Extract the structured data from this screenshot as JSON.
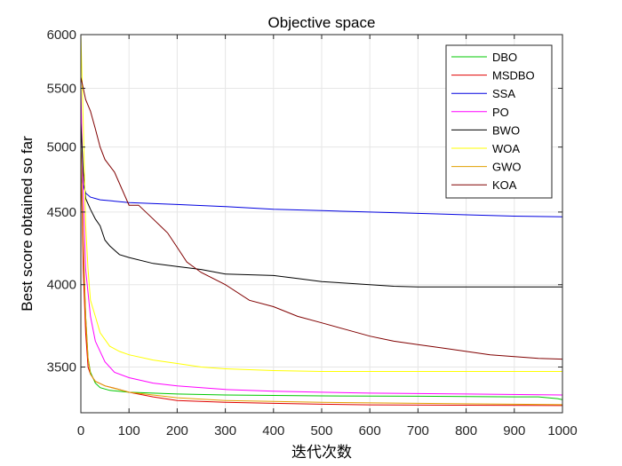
{
  "chart_data": {
    "type": "line",
    "title": "Objective space",
    "xlabel": "迭代次数",
    "ylabel": "Best score obtained so far",
    "xlim": [
      0,
      1000
    ],
    "ylim": [
      3250,
      6000
    ],
    "yscale": "log",
    "grid": true,
    "legend_position": "top-right",
    "x_ticks": [
      0,
      100,
      200,
      300,
      400,
      500,
      600,
      700,
      800,
      900,
      1000
    ],
    "y_ticks": [
      3500,
      4000,
      4500,
      5000,
      5500,
      6000
    ],
    "series": [
      {
        "name": "DBO",
        "color": "#00c800",
        "points": [
          [
            0,
            5000
          ],
          [
            5,
            4200
          ],
          [
            10,
            3800
          ],
          [
            15,
            3550
          ],
          [
            20,
            3470
          ],
          [
            30,
            3410
          ],
          [
            40,
            3385
          ],
          [
            60,
            3370
          ],
          [
            100,
            3360
          ],
          [
            150,
            3355
          ],
          [
            200,
            3350
          ],
          [
            300,
            3345
          ],
          [
            500,
            3340
          ],
          [
            700,
            3338
          ],
          [
            900,
            3335
          ],
          [
            950,
            3335
          ],
          [
            990,
            3325
          ],
          [
            1000,
            3320
          ]
        ]
      },
      {
        "name": "MSDBO",
        "color": "#e00000",
        "points": [
          [
            0,
            5000
          ],
          [
            5,
            4100
          ],
          [
            10,
            3700
          ],
          [
            15,
            3500
          ],
          [
            20,
            3460
          ],
          [
            30,
            3420
          ],
          [
            50,
            3395
          ],
          [
            80,
            3375
          ],
          [
            100,
            3360
          ],
          [
            150,
            3335
          ],
          [
            200,
            3315
          ],
          [
            300,
            3305
          ],
          [
            400,
            3300
          ],
          [
            500,
            3295
          ],
          [
            600,
            3292
          ],
          [
            800,
            3290
          ],
          [
            1000,
            3288
          ]
        ]
      },
      {
        "name": "SSA",
        "color": "#0000e0",
        "points": [
          [
            0,
            4800
          ],
          [
            5,
            4700
          ],
          [
            10,
            4640
          ],
          [
            20,
            4610
          ],
          [
            40,
            4590
          ],
          [
            100,
            4570
          ],
          [
            200,
            4555
          ],
          [
            300,
            4540
          ],
          [
            400,
            4520
          ],
          [
            500,
            4510
          ],
          [
            600,
            4500
          ],
          [
            700,
            4490
          ],
          [
            800,
            4480
          ],
          [
            900,
            4470
          ],
          [
            1000,
            4465
          ]
        ]
      },
      {
        "name": "PO",
        "color": "#ff00ff",
        "points": [
          [
            0,
            5500
          ],
          [
            5,
            4600
          ],
          [
            10,
            4100
          ],
          [
            20,
            3800
          ],
          [
            30,
            3650
          ],
          [
            50,
            3530
          ],
          [
            70,
            3470
          ],
          [
            100,
            3440
          ],
          [
            150,
            3410
          ],
          [
            200,
            3395
          ],
          [
            300,
            3375
          ],
          [
            400,
            3365
          ],
          [
            500,
            3360
          ],
          [
            600,
            3355
          ],
          [
            800,
            3350
          ],
          [
            1000,
            3345
          ]
        ]
      },
      {
        "name": "BWO",
        "color": "#000000",
        "points": [
          [
            0,
            5200
          ],
          [
            5,
            4800
          ],
          [
            10,
            4600
          ],
          [
            20,
            4520
          ],
          [
            30,
            4450
          ],
          [
            40,
            4400
          ],
          [
            50,
            4300
          ],
          [
            60,
            4260
          ],
          [
            80,
            4200
          ],
          [
            100,
            4180
          ],
          [
            150,
            4140
          ],
          [
            200,
            4120
          ],
          [
            250,
            4100
          ],
          [
            300,
            4070
          ],
          [
            400,
            4060
          ],
          [
            450,
            4040
          ],
          [
            500,
            4020
          ],
          [
            550,
            4010
          ],
          [
            600,
            4000
          ],
          [
            650,
            3990
          ],
          [
            700,
            3985
          ],
          [
            800,
            3985
          ],
          [
            900,
            3985
          ],
          [
            1000,
            3985
          ]
        ]
      },
      {
        "name": "WOA",
        "color": "#ffff00",
        "points": [
          [
            0,
            6000
          ],
          [
            5,
            5200
          ],
          [
            10,
            4400
          ],
          [
            15,
            4100
          ],
          [
            20,
            3900
          ],
          [
            30,
            3800
          ],
          [
            40,
            3700
          ],
          [
            60,
            3620
          ],
          [
            80,
            3590
          ],
          [
            100,
            3570
          ],
          [
            150,
            3540
          ],
          [
            200,
            3520
          ],
          [
            250,
            3500
          ],
          [
            300,
            3490
          ],
          [
            400,
            3480
          ],
          [
            500,
            3475
          ],
          [
            700,
            3475
          ],
          [
            1000,
            3475
          ]
        ]
      },
      {
        "name": "GWO",
        "color": "#e0a000",
        "points": [
          [
            0,
            5000
          ],
          [
            5,
            4300
          ],
          [
            10,
            3800
          ],
          [
            15,
            3550
          ],
          [
            20,
            3460
          ],
          [
            30,
            3420
          ],
          [
            50,
            3395
          ],
          [
            100,
            3360
          ],
          [
            200,
            3330
          ],
          [
            300,
            3315
          ],
          [
            400,
            3310
          ],
          [
            500,
            3305
          ],
          [
            700,
            3300
          ],
          [
            900,
            3295
          ],
          [
            1000,
            3293
          ]
        ]
      },
      {
        "name": "KOA",
        "color": "#800000",
        "points": [
          [
            0,
            5600
          ],
          [
            5,
            5500
          ],
          [
            10,
            5400
          ],
          [
            20,
            5300
          ],
          [
            30,
            5150
          ],
          [
            40,
            5000
          ],
          [
            50,
            4900
          ],
          [
            70,
            4800
          ],
          [
            100,
            4550
          ],
          [
            120,
            4550
          ],
          [
            150,
            4450
          ],
          [
            180,
            4350
          ],
          [
            200,
            4250
          ],
          [
            220,
            4150
          ],
          [
            250,
            4080
          ],
          [
            300,
            4000
          ],
          [
            350,
            3900
          ],
          [
            400,
            3860
          ],
          [
            450,
            3800
          ],
          [
            500,
            3760
          ],
          [
            550,
            3720
          ],
          [
            600,
            3680
          ],
          [
            650,
            3650
          ],
          [
            700,
            3630
          ],
          [
            750,
            3610
          ],
          [
            800,
            3590
          ],
          [
            850,
            3570
          ],
          [
            900,
            3560
          ],
          [
            950,
            3550
          ],
          [
            1000,
            3545
          ]
        ]
      }
    ]
  }
}
